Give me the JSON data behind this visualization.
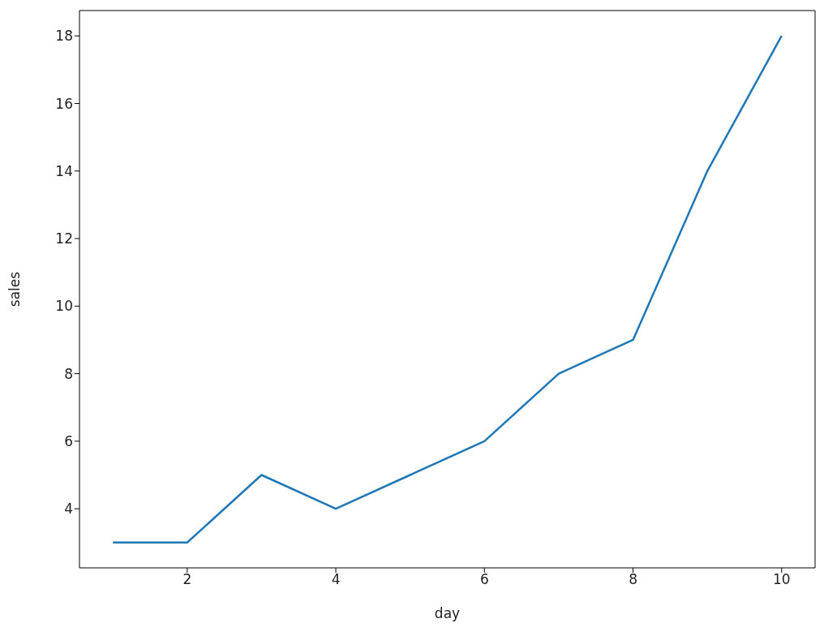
{
  "chart_data": {
    "type": "line",
    "xlabel": "day",
    "ylabel": "sales",
    "x": [
      1,
      2,
      3,
      4,
      5,
      6,
      7,
      8,
      9,
      10
    ],
    "series": [
      {
        "color": "#1f77b4",
        "values": [
          3,
          3,
          5,
          4,
          5,
          6,
          8,
          9,
          14,
          18
        ]
      }
    ],
    "xlim": [
      0.55,
      10.45
    ],
    "xticks": [
      2,
      4,
      6,
      8,
      10
    ],
    "ylim": [
      2.25,
      18.75
    ],
    "yticks": [
      4,
      6,
      8,
      10,
      12,
      14,
      16,
      18
    ],
    "grid": false,
    "legend": false
  }
}
